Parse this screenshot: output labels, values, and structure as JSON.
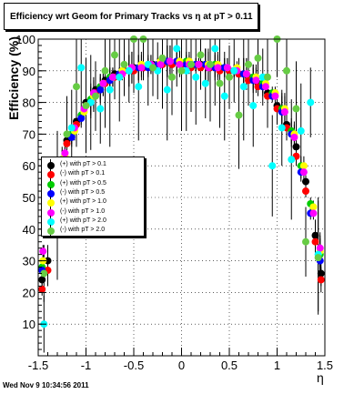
{
  "header": {
    "title": "Efficiency wrt Geom for Primary Tracks vs    η at pT > 0.11"
  },
  "footer": {
    "timestamp": "Wed Nov  9 10:34:56 2011"
  },
  "chart_data": {
    "type": "scatter",
    "title": "Efficiency wrt Geom for Primary Tracks vs    η at pT > 0.11",
    "xlabel": "η",
    "ylabel": "Efficiency (%)",
    "xlim": [
      -1.5,
      1.5
    ],
    "ylim": [
      0,
      100
    ],
    "xticks": [
      "-1.5",
      "-1",
      "-0.5",
      "0",
      "0.5",
      "1",
      "1.5"
    ],
    "yticks": [
      "10",
      "20",
      "30",
      "40",
      "50",
      "60",
      "70",
      "80",
      "90",
      "100"
    ],
    "grid": true,
    "legend_position": "left-middle",
    "series": [
      {
        "name": "(+) with pT > 0.1",
        "color": "#000000",
        "x": [
          -1.46,
          -1.4,
          -1.3,
          -1.2,
          -1.1,
          -1.0,
          -0.9,
          -0.8,
          -0.7,
          -0.6,
          -0.5,
          -0.4,
          -0.3,
          -0.2,
          -0.1,
          0.0,
          0.1,
          0.2,
          0.3,
          0.4,
          0.5,
          0.6,
          0.7,
          0.8,
          0.9,
          1.0,
          1.1,
          1.2,
          1.3,
          1.4,
          1.46
        ],
        "y": [
          24,
          30,
          60,
          68,
          74,
          80,
          84,
          87,
          89,
          90,
          91,
          91,
          92,
          92,
          92,
          92,
          92,
          92,
          91,
          91,
          90,
          89,
          88,
          86,
          83,
          79,
          73,
          66,
          55,
          38,
          26
        ]
      },
      {
        "name": "(-) with pT > 0.1",
        "color": "#ff0000",
        "x": [
          -1.46,
          -1.4,
          -1.3,
          -1.2,
          -1.1,
          -1.0,
          -0.9,
          -0.8,
          -0.7,
          -0.6,
          -0.5,
          -0.4,
          -0.3,
          -0.2,
          -0.1,
          0.0,
          0.1,
          0.2,
          0.3,
          0.4,
          0.5,
          0.6,
          0.7,
          0.8,
          0.9,
          1.0,
          1.1,
          1.2,
          1.3,
          1.4,
          1.46
        ],
        "y": [
          21,
          27,
          58,
          67,
          73,
          79,
          83,
          86,
          88,
          90,
          90,
          91,
          91,
          92,
          92,
          92,
          91,
          91,
          91,
          90,
          90,
          89,
          87,
          85,
          82,
          78,
          72,
          63,
          52,
          36,
          24
        ]
      },
      {
        "name": "(+) with pT > 0.5",
        "color": "#00cc00",
        "x": [
          -1.46,
          -1.35,
          -1.25,
          -1.15,
          -1.05,
          -0.95,
          -0.85,
          -0.75,
          -0.65,
          -0.55,
          -0.45,
          -0.35,
          -0.25,
          -0.15,
          -0.05,
          0.05,
          0.15,
          0.25,
          0.35,
          0.45,
          0.55,
          0.65,
          0.75,
          0.85,
          0.95,
          1.05,
          1.15,
          1.25,
          1.35,
          1.45
        ],
        "y": [
          28,
          46,
          62,
          70,
          76,
          81,
          85,
          88,
          89,
          90,
          91,
          92,
          92,
          93,
          93,
          93,
          92,
          92,
          92,
          91,
          90,
          89,
          88,
          86,
          83,
          78,
          71,
          60,
          48,
          32
        ]
      },
      {
        "name": "(-) with pT > 0.5",
        "color": "#0000ff",
        "x": [
          -1.46,
          -1.35,
          -1.25,
          -1.15,
          -1.05,
          -0.95,
          -0.85,
          -0.75,
          -0.65,
          -0.55,
          -0.45,
          -0.35,
          -0.25,
          -0.15,
          -0.05,
          0.05,
          0.15,
          0.25,
          0.35,
          0.45,
          0.55,
          0.65,
          0.75,
          0.85,
          0.95,
          1.05,
          1.15,
          1.25,
          1.35,
          1.45
        ],
        "y": [
          27,
          45,
          61,
          69,
          75,
          80,
          84,
          87,
          89,
          90,
          91,
          91,
          92,
          93,
          93,
          92,
          92,
          92,
          91,
          91,
          90,
          89,
          87,
          85,
          82,
          77,
          70,
          58,
          45,
          30
        ]
      },
      {
        "name": "(+) with pT > 1.0",
        "color": "#ffff00",
        "x": [
          -1.45,
          -1.33,
          -1.22,
          -1.12,
          -1.02,
          -0.92,
          -0.82,
          -0.72,
          -0.62,
          -0.52,
          -0.42,
          -0.32,
          -0.22,
          -0.12,
          -0.02,
          0.08,
          0.18,
          0.28,
          0.38,
          0.48,
          0.58,
          0.68,
          0.78,
          0.88,
          0.98,
          1.08,
          1.18,
          1.28,
          1.38,
          1.45
        ],
        "y": [
          30,
          48,
          63,
          71,
          77,
          82,
          86,
          88,
          90,
          91,
          92,
          92,
          93,
          93,
          93,
          93,
          92,
          92,
          92,
          91,
          91,
          89,
          88,
          86,
          83,
          78,
          70,
          60,
          47,
          33
        ]
      },
      {
        "name": "(-) with pT > 1.0",
        "color": "#ff00ff",
        "x": [
          -1.45,
          -1.33,
          -1.22,
          -1.12,
          -1.02,
          -0.92,
          -0.82,
          -0.72,
          -0.62,
          -0.52,
          -0.42,
          -0.32,
          -0.22,
          -0.12,
          -0.02,
          0.08,
          0.18,
          0.28,
          0.38,
          0.48,
          0.58,
          0.68,
          0.78,
          0.88,
          0.98,
          1.08,
          1.18,
          1.28,
          1.38,
          1.45
        ],
        "y": [
          33,
          50,
          64,
          72,
          78,
          83,
          86,
          88,
          89,
          91,
          91,
          92,
          92,
          93,
          92,
          92,
          92,
          91,
          91,
          91,
          90,
          89,
          87,
          85,
          82,
          77,
          69,
          58,
          45,
          34
        ]
      },
      {
        "name": "(+) with pT > 2.0",
        "color": "#00ffff",
        "x": [
          -1.44,
          -1.3,
          -1.15,
          -1.05,
          -0.95,
          -0.85,
          -0.75,
          -0.65,
          -0.55,
          -0.45,
          -0.35,
          -0.25,
          -0.15,
          -0.05,
          0.05,
          0.15,
          0.25,
          0.35,
          0.45,
          0.55,
          0.65,
          0.75,
          0.85,
          0.95,
          1.05,
          1.15,
          1.25,
          1.35,
          1.43
        ],
        "y": [
          10,
          55,
          72,
          91,
          80,
          78,
          84,
          88,
          90,
          85,
          92,
          90,
          84,
          97,
          90,
          88,
          86,
          97,
          82,
          90,
          85,
          79,
          88,
          60,
          72,
          62,
          71,
          80,
          32
        ]
      },
      {
        "name": "(-) with pT > 2.0",
        "color": "#66cc44",
        "x": [
          -1.44,
          -1.3,
          -1.2,
          -1.1,
          -1.0,
          -0.9,
          -0.8,
          -0.7,
          -0.6,
          -0.5,
          -0.4,
          -0.3,
          -0.2,
          -0.1,
          0.0,
          0.1,
          0.2,
          0.3,
          0.4,
          0.5,
          0.6,
          0.7,
          0.8,
          0.9,
          1.0,
          1.1,
          1.2,
          1.3,
          1.43
        ],
        "y": [
          26,
          40,
          70,
          85,
          79,
          82,
          90,
          95,
          92,
          100,
          100,
          91,
          94,
          88,
          90,
          92,
          95,
          92,
          86,
          88,
          76,
          92,
          94,
          88,
          100,
          90,
          78,
          36,
          31
        ]
      }
    ]
  }
}
